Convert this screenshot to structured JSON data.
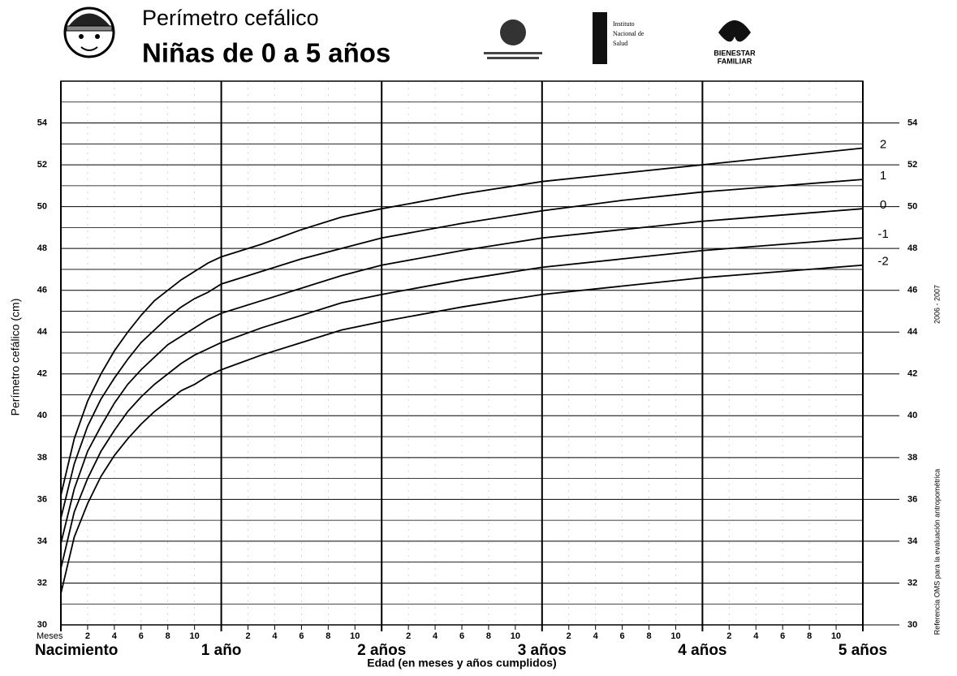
{
  "header": {
    "title": "Perímetro cefálico",
    "subtitle": "Niñas de 0 a 5 años",
    "logo_ins": [
      "Instituto",
      "Nacional de",
      "Salud"
    ],
    "logo_icbf": [
      "BIENESTAR",
      "FAMILIAR"
    ]
  },
  "side_note": {
    "text": "Referencia OMS para la evaluación antropométrica",
    "years": "2006 - 2007"
  },
  "chart_data": {
    "type": "line",
    "y_label": "Perímetro cefálico (cm)",
    "x_label": "Edad (en meses y años cumplidos)",
    "x_unit_label": "Meses",
    "x": [
      0,
      1,
      2,
      3,
      4,
      5,
      6,
      7,
      8,
      9,
      10,
      11,
      12,
      15,
      18,
      21,
      24,
      30,
      36,
      42,
      48,
      54,
      60
    ],
    "series": [
      {
        "name": "2",
        "color": "#000000",
        "values": [
          36.2,
          38.9,
          40.7,
          42.0,
          43.1,
          44.0,
          44.8,
          45.5,
          46.0,
          46.5,
          46.9,
          47.3,
          47.6,
          48.2,
          48.9,
          49.5,
          49.9,
          50.6,
          51.2,
          51.6,
          52.0,
          52.4,
          52.8
        ]
      },
      {
        "name": "1",
        "color": "#000000",
        "values": [
          35.1,
          37.7,
          39.5,
          40.8,
          41.8,
          42.7,
          43.5,
          44.1,
          44.7,
          45.2,
          45.6,
          45.9,
          46.3,
          46.9,
          47.5,
          48.0,
          48.5,
          49.2,
          49.8,
          50.3,
          50.7,
          51.0,
          51.3
        ]
      },
      {
        "name": "0",
        "color": "#000000",
        "values": [
          33.9,
          36.5,
          38.3,
          39.5,
          40.6,
          41.5,
          42.2,
          42.8,
          43.4,
          43.8,
          44.2,
          44.6,
          44.9,
          45.5,
          46.1,
          46.7,
          47.2,
          47.9,
          48.5,
          48.9,
          49.3,
          49.6,
          49.9
        ]
      },
      {
        "name": "-1",
        "color": "#000000",
        "values": [
          32.7,
          35.4,
          37.0,
          38.3,
          39.3,
          40.2,
          40.9,
          41.5,
          42.0,
          42.5,
          42.9,
          43.2,
          43.5,
          44.2,
          44.8,
          45.4,
          45.8,
          46.5,
          47.1,
          47.5,
          47.9,
          48.2,
          48.5
        ]
      },
      {
        "name": "-2",
        "color": "#000000",
        "values": [
          31.5,
          34.2,
          35.8,
          37.1,
          38.1,
          38.9,
          39.6,
          40.2,
          40.7,
          41.2,
          41.5,
          41.9,
          42.2,
          42.9,
          43.5,
          44.1,
          44.5,
          45.2,
          45.8,
          46.2,
          46.6,
          46.9,
          47.2
        ]
      }
    ],
    "xlim": [
      0,
      60
    ],
    "xticks": [
      {
        "value": 0,
        "label": "Nacimiento"
      },
      {
        "value": 12,
        "label": "1 año"
      },
      {
        "value": 24,
        "label": "2 años"
      },
      {
        "value": 36,
        "label": "3 años"
      },
      {
        "value": 48,
        "label": "4 años"
      },
      {
        "value": 60,
        "label": "5 años"
      }
    ],
    "x_month_ticks": [
      2,
      4,
      6,
      8,
      10,
      {
        "value": 14,
        "label": "2"
      },
      {
        "value": 16,
        "label": "4"
      },
      {
        "value": 18,
        "label": "6"
      },
      {
        "value": 20,
        "label": "8"
      },
      {
        "value": 22,
        "label": "10"
      },
      {
        "value": 26,
        "label": "2"
      },
      {
        "value": 28,
        "label": "4"
      },
      {
        "value": 30,
        "label": "6"
      },
      {
        "value": 32,
        "label": "8"
      },
      {
        "value": 34,
        "label": "10"
      },
      {
        "value": 38,
        "label": "2"
      },
      {
        "value": 40,
        "label": "4"
      },
      {
        "value": 42,
        "label": "6"
      },
      {
        "value": 44,
        "label": "8"
      },
      {
        "value": 46,
        "label": "10"
      },
      {
        "value": 50,
        "label": "2"
      },
      {
        "value": 52,
        "label": "4"
      },
      {
        "value": 54,
        "label": "6"
      },
      {
        "value": 56,
        "label": "8"
      },
      {
        "value": 58,
        "label": "10"
      }
    ],
    "ylim": [
      30,
      56
    ],
    "yticks": [
      30,
      32,
      34,
      36,
      38,
      40,
      42,
      44,
      46,
      48,
      50,
      52,
      54
    ],
    "y_minor_ticks": [
      31,
      33,
      35,
      37,
      39,
      41,
      43,
      45,
      47,
      49,
      51,
      53,
      55,
      56
    ],
    "grid": true
  }
}
